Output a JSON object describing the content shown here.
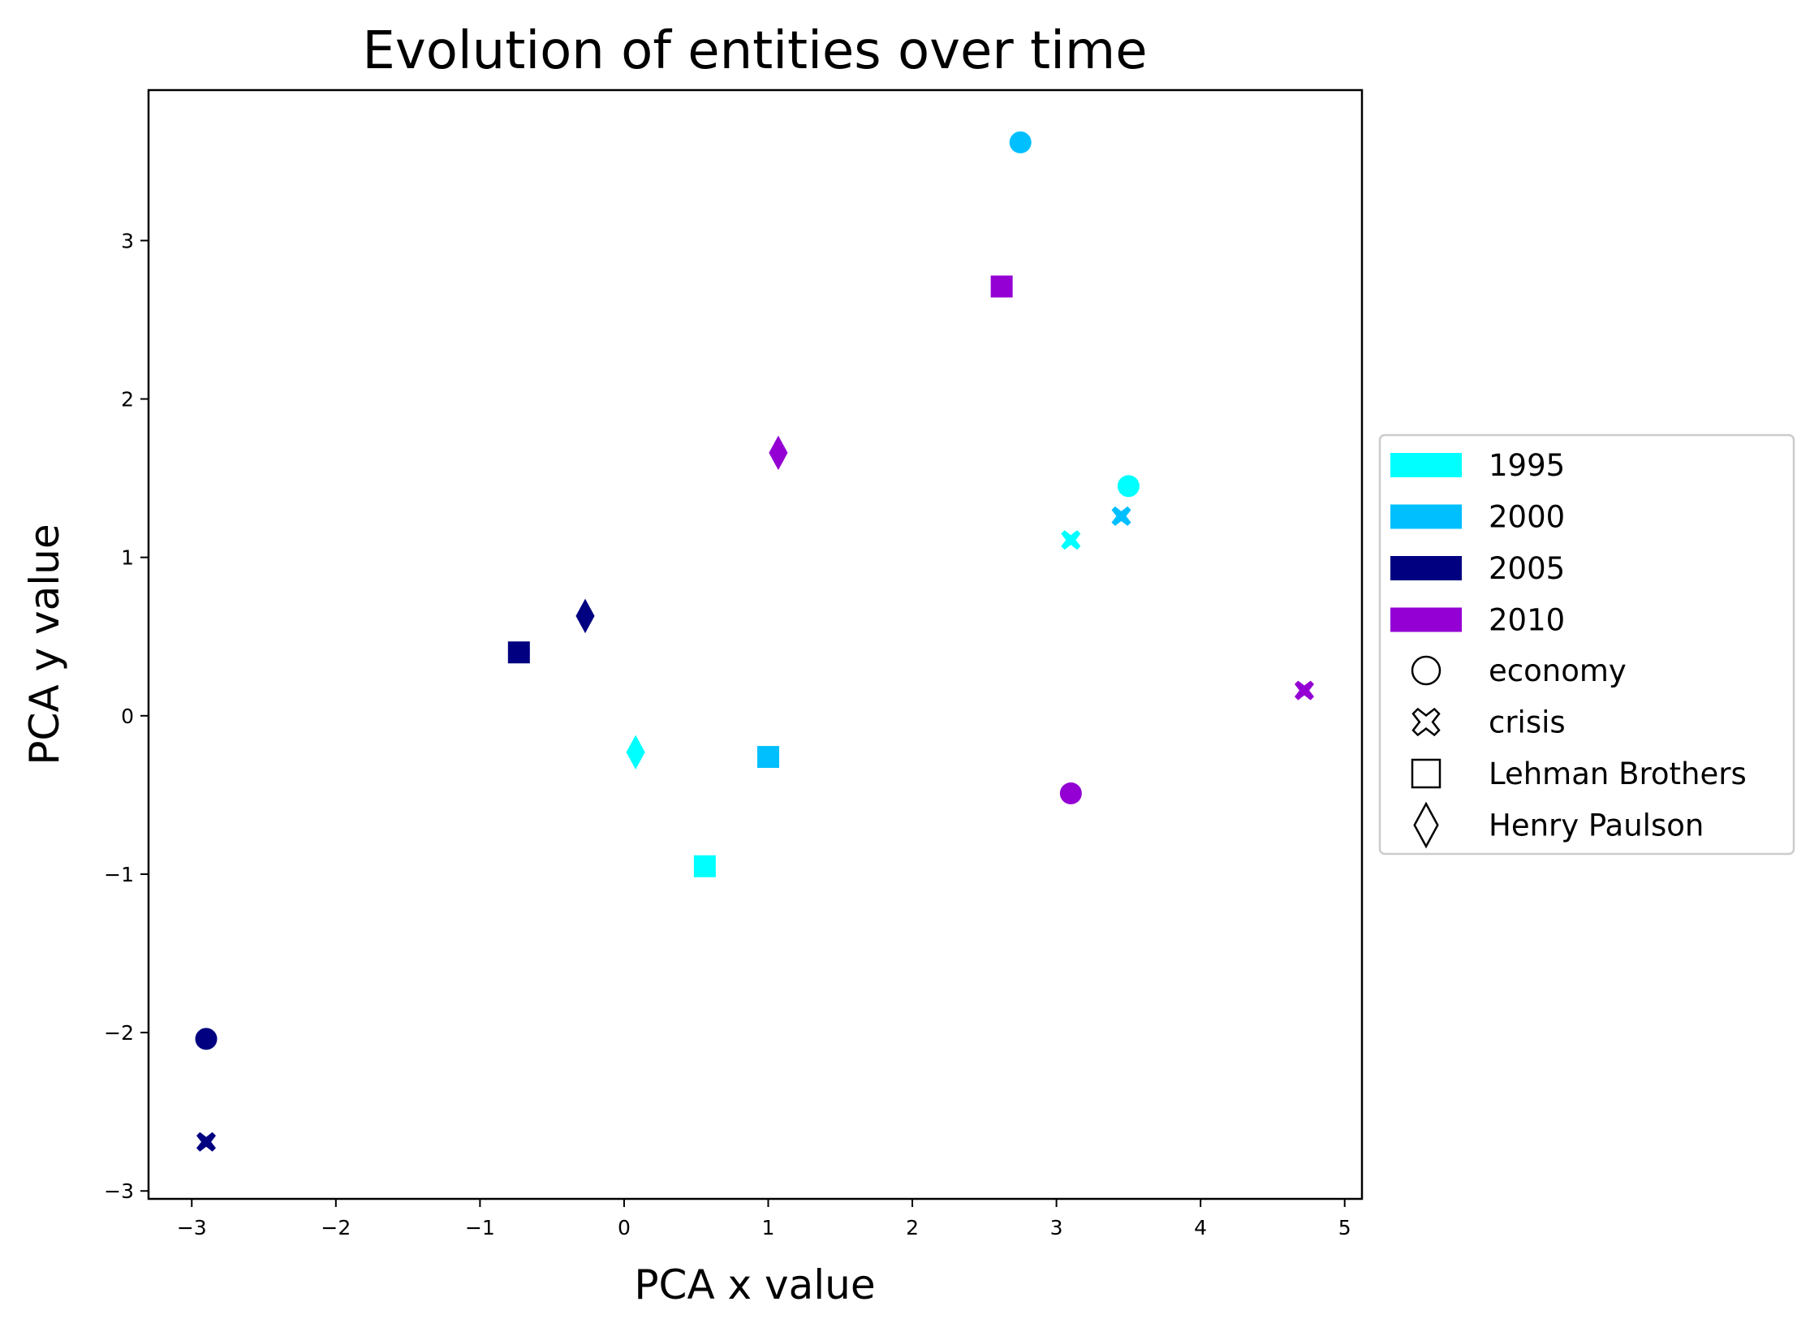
{
  "chart_data": {
    "type": "scatter",
    "title": "Evolution of entities over time",
    "xlabel": "PCA x value",
    "ylabel": "PCA y value",
    "xlim": [
      -3.3,
      5.12
    ],
    "ylim": [
      -3.05,
      3.95
    ],
    "xticks": [
      -3,
      -2,
      -1,
      0,
      1,
      2,
      3,
      4,
      5
    ],
    "yticks": [
      -3,
      -2,
      -1,
      0,
      1,
      2,
      3
    ],
    "xtick_labels": [
      "−3",
      "−2",
      "−1",
      "0",
      "1",
      "2",
      "3",
      "4",
      "5"
    ],
    "ytick_labels": [
      "−3",
      "−2",
      "−1",
      "0",
      "1",
      "2",
      "3"
    ],
    "grid": false,
    "legend_position": "outside-right",
    "year_colors": [
      {
        "label": "1995",
        "color": "#00FFFF"
      },
      {
        "label": "2000",
        "color": "#00BFFF"
      },
      {
        "label": "2005",
        "color": "#000080"
      },
      {
        "label": "2010",
        "color": "#9400D3"
      }
    ],
    "entity_markers": [
      {
        "label": "economy",
        "marker": "circle"
      },
      {
        "label": "crisis",
        "marker": "x"
      },
      {
        "label": "Lehman Brothers",
        "marker": "square"
      },
      {
        "label": "Henry Paulson",
        "marker": "diamond"
      }
    ],
    "points": [
      {
        "x": 3.5,
        "y": 1.45,
        "year": "1995",
        "entity": "economy"
      },
      {
        "x": 3.1,
        "y": 1.11,
        "year": "1995",
        "entity": "crisis"
      },
      {
        "x": 0.56,
        "y": -0.95,
        "year": "1995",
        "entity": "Lehman Brothers"
      },
      {
        "x": 0.08,
        "y": -0.23,
        "year": "1995",
        "entity": "Henry Paulson"
      },
      {
        "x": 2.75,
        "y": 3.62,
        "year": "2000",
        "entity": "economy"
      },
      {
        "x": 3.45,
        "y": 1.26,
        "year": "2000",
        "entity": "crisis"
      },
      {
        "x": 1.0,
        "y": -0.26,
        "year": "2000",
        "entity": "Lehman Brothers"
      },
      {
        "x": -2.9,
        "y": -2.04,
        "year": "2005",
        "entity": "economy"
      },
      {
        "x": -2.9,
        "y": -2.69,
        "year": "2005",
        "entity": "crisis"
      },
      {
        "x": -0.73,
        "y": 0.4,
        "year": "2005",
        "entity": "Lehman Brothers"
      },
      {
        "x": -0.27,
        "y": 0.63,
        "year": "2005",
        "entity": "Henry Paulson"
      },
      {
        "x": 3.1,
        "y": -0.49,
        "year": "2010",
        "entity": "economy"
      },
      {
        "x": 4.72,
        "y": 0.16,
        "year": "2010",
        "entity": "crisis"
      },
      {
        "x": 2.62,
        "y": 2.71,
        "year": "2010",
        "entity": "Lehman Brothers"
      },
      {
        "x": 1.07,
        "y": 1.66,
        "year": "2010",
        "entity": "Henry Paulson"
      }
    ]
  }
}
